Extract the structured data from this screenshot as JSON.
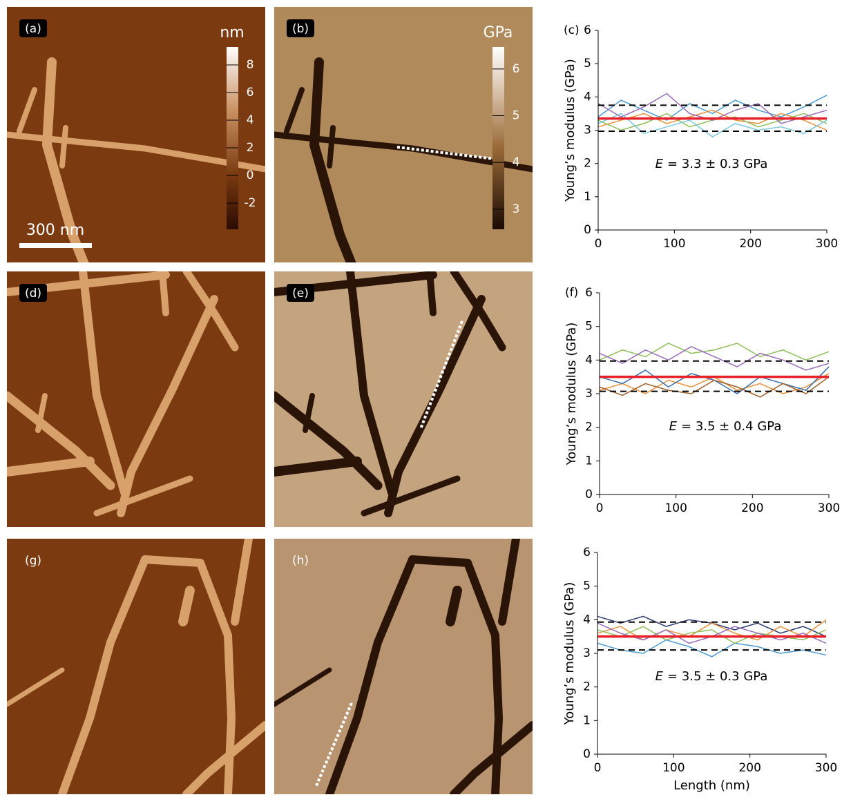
{
  "images": [
    {
      "label": "(a)",
      "colorbar": {
        "title": "nm",
        "lim": [
          -3.9,
          9.3
        ],
        "ticks": [
          -2,
          0,
          2,
          4,
          6,
          8
        ]
      },
      "scale_bar": "300 nm"
    },
    {
      "label": "(b)",
      "colorbar": {
        "title": "GPa",
        "lim": [
          2.57,
          6.47
        ],
        "ticks": [
          3,
          4,
          5,
          6
        ]
      }
    },
    {
      "label": "(d)"
    },
    {
      "label": "(e)"
    },
    {
      "label": "(g)"
    },
    {
      "label": "(h)"
    }
  ],
  "chart_data": [
    {
      "type": "line",
      "label": "(c)",
      "ylabel": "Young’s modulus (GPa)",
      "annotation_var": "E",
      "annotation": "= 3.3 ± 0.3 GPa",
      "x": [
        0,
        30,
        60,
        90,
        120,
        150,
        180,
        210,
        240,
        270,
        300
      ],
      "xlim": [
        0,
        300
      ],
      "ylim": [
        0,
        6
      ],
      "xticks": [
        0,
        100,
        200,
        300
      ],
      "yticks": [
        0,
        1,
        2,
        3,
        4,
        5,
        6
      ],
      "series": [
        {
          "color": "#4a9ad0",
          "values": [
            3.4,
            3.9,
            3.6,
            3.3,
            3.8,
            3.5,
            3.9,
            3.6,
            3.4,
            3.7,
            4.05
          ]
        },
        {
          "color": "#e8903a",
          "values": [
            3.1,
            3.3,
            3.5,
            3.2,
            3.4,
            3.6,
            3.3,
            3.2,
            3.5,
            3.3,
            3.0
          ]
        },
        {
          "color": "#8cbf5a",
          "values": [
            3.3,
            3.0,
            3.2,
            3.5,
            3.1,
            3.3,
            3.4,
            3.1,
            3.3,
            3.5,
            3.2
          ]
        },
        {
          "color": "#9a6bb8",
          "values": [
            3.8,
            3.4,
            3.7,
            4.1,
            3.5,
            3.3,
            3.6,
            3.8,
            3.2,
            3.4,
            3.6
          ]
        },
        {
          "color": "#7cc8dc",
          "values": [
            3.2,
            3.5,
            2.9,
            3.1,
            3.3,
            2.8,
            3.2,
            3.0,
            3.1,
            2.9,
            3.3
          ]
        },
        {
          "color": "#000000",
          "style": "dashed",
          "values": [
            3.75,
            3.75,
            3.75,
            3.75,
            3.75,
            3.75,
            3.75,
            3.75,
            3.75,
            3.75,
            3.75
          ]
        },
        {
          "color": "#000000",
          "style": "dashed",
          "values": [
            2.97,
            2.97,
            2.97,
            2.97,
            2.97,
            2.97,
            2.97,
            2.97,
            2.97,
            2.97,
            2.97
          ]
        },
        {
          "color": "#e8202a",
          "style": "mean",
          "values": [
            3.35,
            3.35,
            3.35,
            3.35,
            3.35,
            3.35,
            3.35,
            3.35,
            3.35,
            3.35,
            3.35
          ]
        }
      ]
    },
    {
      "type": "line",
      "label": "(f)",
      "ylabel": "Young’s modulus (GPa)",
      "annotation_var": "E",
      "annotation": "= 3.5 ± 0.4 GPa",
      "x": [
        0,
        30,
        60,
        90,
        120,
        150,
        180,
        210,
        240,
        270,
        300
      ],
      "xlim": [
        0,
        300
      ],
      "ylim": [
        0,
        6
      ],
      "xticks": [
        0,
        100,
        200,
        300
      ],
      "yticks": [
        0,
        1,
        2,
        3,
        4,
        5,
        6
      ],
      "series": [
        {
          "color": "#8cbf5a",
          "values": [
            4.0,
            4.3,
            4.1,
            4.5,
            4.2,
            4.3,
            4.5,
            4.1,
            4.3,
            4.0,
            4.25
          ]
        },
        {
          "color": "#9a6bb8",
          "values": [
            4.2,
            3.9,
            4.3,
            4.0,
            4.4,
            4.1,
            3.8,
            4.2,
            4.0,
            3.7,
            3.9
          ]
        },
        {
          "color": "#e8903a",
          "values": [
            3.1,
            3.3,
            3.0,
            3.4,
            3.2,
            3.5,
            3.1,
            3.3,
            3.0,
            3.2,
            3.6
          ]
        },
        {
          "color": "#3a6ea8",
          "values": [
            3.5,
            3.3,
            3.7,
            3.2,
            3.6,
            3.4,
            3.0,
            3.5,
            3.3,
            3.1,
            3.8
          ]
        },
        {
          "color": "#a0602a",
          "values": [
            3.2,
            2.95,
            3.3,
            3.1,
            3.0,
            3.4,
            3.2,
            2.9,
            3.3,
            3.0,
            3.5
          ]
        },
        {
          "color": "#000000",
          "style": "dashed",
          "values": [
            3.97,
            3.97,
            3.97,
            3.97,
            3.97,
            3.97,
            3.97,
            3.97,
            3.97,
            3.97,
            3.97
          ]
        },
        {
          "color": "#000000",
          "style": "dashed",
          "values": [
            3.07,
            3.07,
            3.07,
            3.07,
            3.07,
            3.07,
            3.07,
            3.07,
            3.07,
            3.07,
            3.07
          ]
        },
        {
          "color": "#e8202a",
          "style": "mean",
          "values": [
            3.5,
            3.5,
            3.5,
            3.5,
            3.5,
            3.5,
            3.5,
            3.5,
            3.5,
            3.5,
            3.5
          ]
        }
      ]
    },
    {
      "type": "line",
      "ylabel": "Young’s modulus (GPa)",
      "xlabel": "Length (nm)",
      "annotation_var": "E",
      "annotation": "= 3.5 ± 0.3 GPa",
      "x": [
        0,
        30,
        60,
        90,
        120,
        150,
        180,
        210,
        240,
        270,
        300
      ],
      "xlim": [
        0,
        300
      ],
      "ylim": [
        0,
        6
      ],
      "xticks": [
        0,
        100,
        200,
        300
      ],
      "yticks": [
        0,
        1,
        2,
        3,
        4,
        5,
        6
      ],
      "series": [
        {
          "color": "#2a3a70",
          "values": [
            4.1,
            3.9,
            4.1,
            3.8,
            4.0,
            3.9,
            3.7,
            3.9,
            3.6,
            3.8,
            3.5
          ]
        },
        {
          "color": "#e8903a",
          "values": [
            3.6,
            3.8,
            3.4,
            3.7,
            3.5,
            3.9,
            3.6,
            3.4,
            3.8,
            3.5,
            4.0
          ]
        },
        {
          "color": "#4a9ad0",
          "values": [
            3.3,
            3.1,
            3.0,
            3.4,
            3.2,
            2.9,
            3.3,
            3.2,
            3.0,
            3.1,
            2.95
          ]
        },
        {
          "color": "#8cbf5a",
          "values": [
            3.7,
            3.5,
            3.8,
            3.4,
            3.6,
            3.7,
            3.3,
            3.6,
            3.5,
            3.4,
            3.7
          ]
        },
        {
          "color": "#9a6bb8",
          "values": [
            3.9,
            3.6,
            3.4,
            3.7,
            3.3,
            3.5,
            3.8,
            3.6,
            3.4,
            3.6,
            3.3
          ]
        },
        {
          "color": "#000000",
          "style": "dashed",
          "values": [
            3.93,
            3.93,
            3.93,
            3.93,
            3.93,
            3.93,
            3.93,
            3.93,
            3.93,
            3.93,
            3.93
          ]
        },
        {
          "color": "#000000",
          "style": "dashed",
          "values": [
            3.1,
            3.1,
            3.1,
            3.1,
            3.1,
            3.1,
            3.1,
            3.1,
            3.1,
            3.1,
            3.1
          ]
        },
        {
          "color": "#e8202a",
          "style": "mean",
          "values": [
            3.5,
            3.5,
            3.5,
            3.5,
            3.5,
            3.5,
            3.5,
            3.5,
            3.5,
            3.5,
            3.5
          ]
        }
      ]
    }
  ]
}
